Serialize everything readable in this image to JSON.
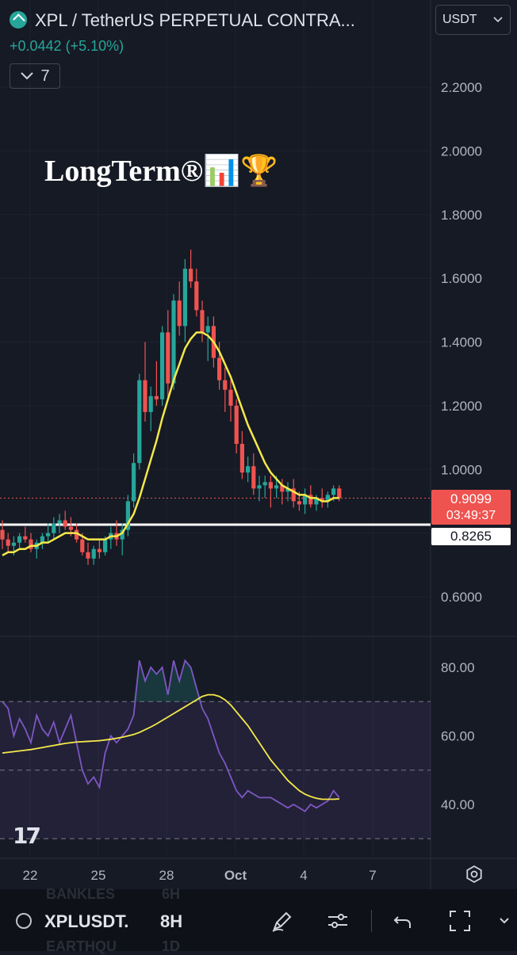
{
  "header": {
    "title": "XPL / TetherUS PERPETUAL CONTRA...",
    "change": "+0.0442 (+5.10%)",
    "indicators_count": "7",
    "currency": "USDT"
  },
  "watermark": "LongTerm®📊🏆",
  "price_axis": {
    "ticks": [
      "2.2000",
      "2.0000",
      "1.8000",
      "1.6000",
      "1.4000",
      "1.2000",
      "1.0000",
      "0.6000"
    ],
    "current_price": "0.9099",
    "countdown": "03:49:37",
    "support_level": "0.8265"
  },
  "rsi_axis": {
    "ticks": [
      "80.00",
      "60.00",
      "40.00"
    ]
  },
  "time_axis": {
    "ticks": [
      "22",
      "25",
      "28",
      "Oct",
      "4",
      "7"
    ]
  },
  "colors": {
    "up": "#26a69a",
    "down": "#ef5350",
    "ma": "#f5e94a",
    "rsi": "#7e57c2",
    "bg": "#161a25"
  },
  "chart_data": [
    {
      "type": "candlestick",
      "interval": "8H",
      "yaxis_ticks": [
        0.6,
        1.0,
        1.2,
        1.4,
        1.6,
        1.8,
        2.0,
        2.2
      ],
      "ylim": [
        0.55,
        2.3
      ],
      "x_ticks": [
        "22",
        "25",
        "28",
        "Oct",
        "4",
        "7"
      ],
      "candles": [
        [
          0.81,
          0.84,
          0.75,
          0.78
        ],
        [
          0.78,
          0.8,
          0.74,
          0.76
        ],
        [
          0.76,
          0.79,
          0.73,
          0.77
        ],
        [
          0.77,
          0.8,
          0.75,
          0.79
        ],
        [
          0.79,
          0.82,
          0.77,
          0.78
        ],
        [
          0.78,
          0.8,
          0.74,
          0.75
        ],
        [
          0.75,
          0.78,
          0.72,
          0.77
        ],
        [
          0.77,
          0.8,
          0.75,
          0.79
        ],
        [
          0.79,
          0.83,
          0.77,
          0.8
        ],
        [
          0.8,
          0.85,
          0.78,
          0.83
        ],
        [
          0.83,
          0.86,
          0.8,
          0.84
        ],
        [
          0.84,
          0.87,
          0.81,
          0.82
        ],
        [
          0.82,
          0.85,
          0.79,
          0.81
        ],
        [
          0.81,
          0.83,
          0.77,
          0.78
        ],
        [
          0.78,
          0.8,
          0.73,
          0.74
        ],
        [
          0.74,
          0.77,
          0.7,
          0.72
        ],
        [
          0.72,
          0.76,
          0.7,
          0.75
        ],
        [
          0.75,
          0.78,
          0.72,
          0.74
        ],
        [
          0.74,
          0.79,
          0.73,
          0.78
        ],
        [
          0.78,
          0.82,
          0.75,
          0.8
        ],
        [
          0.8,
          0.84,
          0.76,
          0.78
        ],
        [
          0.78,
          0.83,
          0.73,
          0.81
        ],
        [
          0.81,
          0.92,
          0.79,
          0.9
        ],
        [
          0.9,
          1.05,
          0.88,
          1.02
        ],
        [
          1.02,
          1.3,
          1.0,
          1.28
        ],
        [
          1.28,
          1.4,
          1.15,
          1.18
        ],
        [
          1.18,
          1.26,
          1.12,
          1.23
        ],
        [
          1.23,
          1.34,
          1.2,
          1.22
        ],
        [
          1.22,
          1.45,
          1.2,
          1.43
        ],
        [
          1.43,
          1.5,
          1.22,
          1.27
        ],
        [
          1.27,
          1.55,
          1.25,
          1.53
        ],
        [
          1.53,
          1.59,
          1.42,
          1.45
        ],
        [
          1.45,
          1.66,
          1.4,
          1.63
        ],
        [
          1.63,
          1.69,
          1.57,
          1.59
        ],
        [
          1.59,
          1.63,
          1.48,
          1.5
        ],
        [
          1.5,
          1.53,
          1.4,
          1.43
        ],
        [
          1.43,
          1.48,
          1.34,
          1.45
        ],
        [
          1.45,
          1.48,
          1.32,
          1.35
        ],
        [
          1.35,
          1.4,
          1.25,
          1.28
        ],
        [
          1.28,
          1.32,
          1.18,
          1.25
        ],
        [
          1.25,
          1.28,
          1.15,
          1.2
        ],
        [
          1.2,
          1.22,
          1.05,
          1.08
        ],
        [
          1.08,
          1.12,
          0.97,
          0.99
        ],
        [
          0.99,
          1.04,
          0.96,
          1.01
        ],
        [
          1.01,
          1.05,
          0.92,
          0.94
        ],
        [
          0.94,
          0.98,
          0.9,
          0.95
        ],
        [
          0.95,
          0.98,
          0.91,
          0.96
        ],
        [
          0.96,
          0.98,
          0.88,
          0.94
        ],
        [
          0.94,
          0.98,
          0.91,
          0.95
        ],
        [
          0.95,
          0.97,
          0.89,
          0.93
        ],
        [
          0.93,
          0.96,
          0.9,
          0.94
        ],
        [
          0.94,
          0.97,
          0.88,
          0.9
        ],
        [
          0.9,
          0.93,
          0.87,
          0.89
        ],
        [
          0.89,
          0.94,
          0.86,
          0.92
        ],
        [
          0.92,
          0.95,
          0.88,
          0.89
        ],
        [
          0.89,
          0.92,
          0.87,
          0.91
        ],
        [
          0.91,
          0.94,
          0.88,
          0.9
        ],
        [
          0.9,
          0.93,
          0.88,
          0.92
        ],
        [
          0.92,
          0.95,
          0.9,
          0.94
        ],
        [
          0.94,
          0.95,
          0.9,
          0.9099
        ]
      ],
      "moving_average": [
        0.73,
        0.74,
        0.74,
        0.75,
        0.75,
        0.76,
        0.76,
        0.77,
        0.77,
        0.78,
        0.79,
        0.8,
        0.8,
        0.8,
        0.79,
        0.78,
        0.78,
        0.78,
        0.78,
        0.79,
        0.79,
        0.8,
        0.83,
        0.86,
        0.91,
        0.97,
        1.03,
        1.09,
        1.16,
        1.22,
        1.28,
        1.33,
        1.38,
        1.41,
        1.43,
        1.43,
        1.42,
        1.4,
        1.37,
        1.33,
        1.29,
        1.24,
        1.19,
        1.14,
        1.1,
        1.06,
        1.02,
        0.99,
        0.97,
        0.95,
        0.94,
        0.93,
        0.92,
        0.92,
        0.91,
        0.91,
        0.9,
        0.9,
        0.91,
        0.91
      ],
      "support_level": 0.8265,
      "current_price": 0.9099
    },
    {
      "type": "line",
      "name": "RSI",
      "yaxis_ticks": [
        40,
        60,
        80
      ],
      "ylim": [
        25,
        87
      ],
      "bands": [
        30,
        50,
        70
      ],
      "rsi": [
        70,
        68,
        60,
        65,
        62,
        58,
        66,
        62,
        60,
        64,
        58,
        62,
        66,
        58,
        50,
        46,
        48,
        45,
        55,
        60,
        58,
        60,
        62,
        66,
        82,
        76,
        80,
        78,
        80,
        72,
        82,
        76,
        82,
        80,
        74,
        68,
        65,
        60,
        55,
        52,
        48,
        44,
        42,
        44,
        43,
        42,
        42,
        42,
        41,
        40,
        39,
        40,
        39,
        38,
        40,
        39,
        40,
        41,
        44,
        42
      ],
      "rsi_ma": [
        55,
        55.2,
        55.4,
        55.6,
        55.8,
        56,
        56.3,
        56.6,
        56.9,
        57.2,
        57.5,
        57.8,
        58,
        58.2,
        58.3,
        58.4,
        58.5,
        58.6,
        58.8,
        59,
        59.3,
        59.6,
        60,
        60.4,
        61,
        61.8,
        62.6,
        63.5,
        64.5,
        65.5,
        66.5,
        67.5,
        68.5,
        69.5,
        70.5,
        71.5,
        72,
        72,
        71.5,
        70.5,
        69,
        67,
        65,
        63,
        60.5,
        58,
        55.5,
        53,
        51,
        49,
        47,
        45.5,
        44,
        43,
        42.3,
        41.8,
        41.5,
        41.5,
        41.5,
        41.6
      ]
    }
  ],
  "bottom_bar": {
    "symbol": "XPLUSDT.",
    "interval": "8H",
    "ghost_above": [
      "BANKLES",
      "6H"
    ],
    "ghost_below": [
      "EARTHQU",
      "1D"
    ]
  }
}
